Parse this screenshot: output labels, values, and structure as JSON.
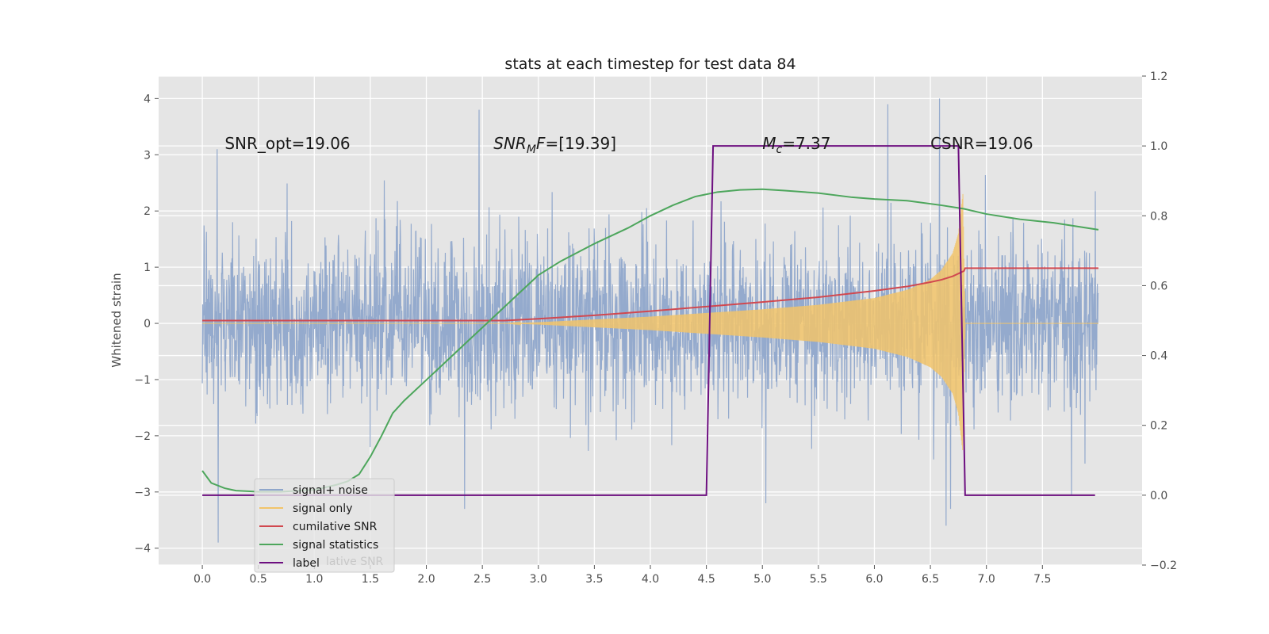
{
  "chart_data": {
    "type": "line",
    "title": "stats at each timestep for test data 84",
    "xlabel": "",
    "ylabel": "Whitened strain",
    "y2label": "",
    "xlim": [
      -0.39,
      8.39
    ],
    "ylim": [
      -4.3,
      4.4
    ],
    "y2lim": [
      -0.2,
      1.2
    ],
    "x_ticks": [
      0.0,
      0.5,
      1.0,
      1.5,
      2.0,
      2.5,
      3.0,
      3.5,
      4.0,
      4.5,
      5.0,
      5.5,
      6.0,
      6.5,
      7.0,
      7.5
    ],
    "x_tick_labels": [
      "0.0",
      "0.5",
      "1.0",
      "1.5",
      "2.0",
      "2.5",
      "3.0",
      "3.5",
      "4.0",
      "4.5",
      "5.0",
      "5.5",
      "6.0",
      "6.5",
      "7.0",
      "7.5"
    ],
    "y_ticks": [
      -4,
      -3,
      -2,
      -1,
      0,
      1,
      2,
      3,
      4
    ],
    "y_tick_labels": [
      "−4",
      "−3",
      "−2",
      "−1",
      "0",
      "1",
      "2",
      "3",
      "4"
    ],
    "y2_ticks": [
      -0.2,
      0.0,
      0.2,
      0.4,
      0.6,
      0.8,
      1.0,
      1.2
    ],
    "y2_tick_labels": [
      "−0.2",
      "0.0",
      "0.2",
      "0.4",
      "0.6",
      "0.8",
      "1.0",
      "1.2"
    ],
    "grid": true,
    "legend_position": "lower-left",
    "annotations": [
      {
        "text": "SNR_opt=19.06",
        "x": 0.2,
        "y": 3.2
      },
      {
        "text": "SNR",
        "sub": "M",
        "suffix": "F=[19.39]",
        "x": 2.6,
        "y": 3.2
      },
      {
        "text": "M",
        "sub": "c",
        "suffix": "=7.37",
        "x": 5.0,
        "y": 3.2
      },
      {
        "text": "CSNR=19.06",
        "x": 6.5,
        "y": 3.2
      }
    ],
    "series": [
      {
        "name": "signal+ noise",
        "axis": "left",
        "color": "#8fa6cb",
        "kind": "noise",
        "x_range": [
          0.0,
          8.0
        ],
        "sigma": 1.0,
        "extremes": [
          [
            0.13,
            3.1
          ],
          [
            0.14,
            -3.9
          ],
          [
            2.47,
            3.8
          ],
          [
            2.34,
            -3.3
          ],
          [
            5.03,
            -3.2
          ],
          [
            6.12,
            3.9
          ],
          [
            6.58,
            4.0
          ],
          [
            6.64,
            -3.6
          ],
          [
            6.68,
            -3.3
          ],
          [
            7.76,
            -3.05
          ],
          [
            7.97,
            2.35
          ]
        ]
      },
      {
        "name": "signal only",
        "axis": "left",
        "color": "#f2c46a",
        "kind": "chirp",
        "x_range": [
          0.0,
          8.0
        ],
        "envelope": [
          [
            0.0,
            0.0
          ],
          [
            2.7,
            0.0
          ],
          [
            3.0,
            0.02
          ],
          [
            4.0,
            0.12
          ],
          [
            5.0,
            0.25
          ],
          [
            5.5,
            0.33
          ],
          [
            6.0,
            0.45
          ],
          [
            6.3,
            0.6
          ],
          [
            6.5,
            0.78
          ],
          [
            6.6,
            0.95
          ],
          [
            6.7,
            1.25
          ],
          [
            6.75,
            1.6
          ],
          [
            6.79,
            2.3
          ],
          [
            6.81,
            0.0
          ],
          [
            8.0,
            0.0
          ]
        ]
      },
      {
        "name": "cumilative SNR",
        "axis": "right",
        "color": "#d1484f",
        "x": [
          0.0,
          1.0,
          2.0,
          2.7,
          3.0,
          3.5,
          4.0,
          4.5,
          5.0,
          5.5,
          6.0,
          6.3,
          6.5,
          6.6,
          6.7,
          6.8,
          6.81,
          7.5,
          8.0
        ],
        "y": [
          0.5,
          0.5,
          0.5,
          0.5,
          0.505,
          0.515,
          0.527,
          0.54,
          0.553,
          0.567,
          0.585,
          0.598,
          0.61,
          0.617,
          0.627,
          0.642,
          0.65,
          0.65,
          0.65
        ]
      },
      {
        "name": "signal statistics",
        "axis": "right",
        "color": "#4da65c",
        "x": [
          0.0,
          0.08,
          0.2,
          0.3,
          0.5,
          0.7,
          1.0,
          1.2,
          1.3,
          1.4,
          1.5,
          1.6,
          1.7,
          1.8,
          2.0,
          2.2,
          2.4,
          2.6,
          2.8,
          3.0,
          3.2,
          3.5,
          3.8,
          4.0,
          4.2,
          4.4,
          4.6,
          4.8,
          5.0,
          5.2,
          5.5,
          5.8,
          6.0,
          6.3,
          6.6,
          6.8,
          7.0,
          7.3,
          7.6,
          7.8,
          8.0
        ],
        "y": [
          0.07,
          0.035,
          0.02,
          0.013,
          0.01,
          0.01,
          0.015,
          0.03,
          0.04,
          0.06,
          0.11,
          0.17,
          0.235,
          0.27,
          0.33,
          0.39,
          0.45,
          0.51,
          0.57,
          0.63,
          0.67,
          0.72,
          0.765,
          0.8,
          0.83,
          0.855,
          0.868,
          0.874,
          0.876,
          0.872,
          0.865,
          0.853,
          0.848,
          0.843,
          0.83,
          0.82,
          0.805,
          0.79,
          0.78,
          0.77,
          0.76
        ]
      },
      {
        "name": "label",
        "axis": "right",
        "color": "#6d0f80",
        "x": [
          0.0,
          4.5,
          4.56,
          6.75,
          6.81,
          7.97
        ],
        "y": [
          0.0,
          0.0,
          1.0,
          1.0,
          0.0,
          0.0
        ]
      }
    ],
    "legend_overlap_text": "lative SNR"
  }
}
